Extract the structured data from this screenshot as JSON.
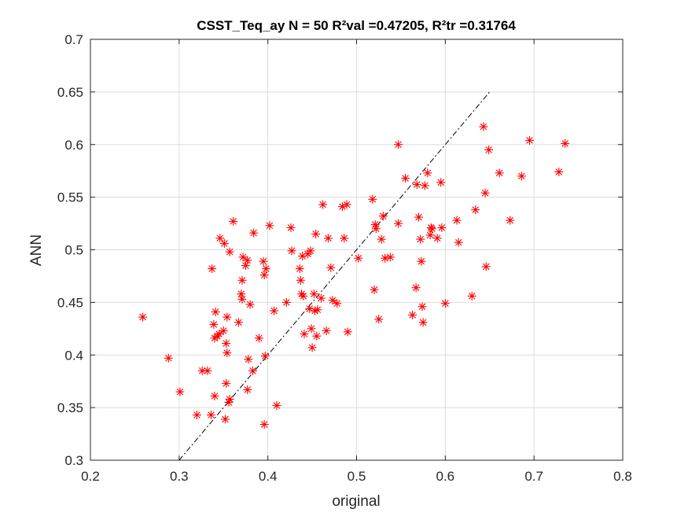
{
  "chart_data": {
    "type": "scatter",
    "title": "CSST_Teq_ay  N = 50 R²val =0.47205, R²tr =0.31764",
    "xlabel": "original",
    "ylabel": "ANN",
    "xlim": [
      0.2,
      0.8
    ],
    "ylim": [
      0.3,
      0.7
    ],
    "xticks": [
      0.2,
      0.3,
      0.4,
      0.5,
      0.6,
      0.7,
      0.8
    ],
    "yticks": [
      0.3,
      0.35,
      0.4,
      0.45,
      0.5,
      0.55,
      0.6,
      0.65,
      0.7
    ],
    "xtick_labels": [
      "0.2",
      "0.3",
      "0.4",
      "0.5",
      "0.6",
      "0.7",
      "0.8"
    ],
    "ytick_labels": [
      "0.3",
      "0.35",
      "0.4",
      "0.45",
      "0.5",
      "0.55",
      "0.6",
      "0.65",
      "0.7"
    ],
    "grid": true,
    "marker": "asterisk",
    "marker_color": "#ff0000",
    "reference_line": {
      "x": [
        0.3,
        0.65
      ],
      "y": [
        0.3,
        0.65
      ],
      "style": "dash-dot",
      "color": "#000000"
    },
    "series": [
      {
        "points": [
          [
            0.259,
            0.436
          ],
          [
            0.288,
            0.397
          ],
          [
            0.301,
            0.365
          ],
          [
            0.32,
            0.343
          ],
          [
            0.326,
            0.385
          ],
          [
            0.332,
            0.385
          ],
          [
            0.336,
            0.343
          ],
          [
            0.337,
            0.482
          ],
          [
            0.339,
            0.429
          ],
          [
            0.34,
            0.361
          ],
          [
            0.34,
            0.416
          ],
          [
            0.341,
            0.441
          ],
          [
            0.343,
            0.418
          ],
          [
            0.345,
            0.42
          ],
          [
            0.346,
            0.511
          ],
          [
            0.35,
            0.423
          ],
          [
            0.351,
            0.506
          ],
          [
            0.352,
            0.339
          ],
          [
            0.353,
            0.373
          ],
          [
            0.353,
            0.411
          ],
          [
            0.354,
            0.402
          ],
          [
            0.354,
            0.436
          ],
          [
            0.356,
            0.355
          ],
          [
            0.357,
            0.358
          ],
          [
            0.357,
            0.498
          ],
          [
            0.361,
            0.527
          ],
          [
            0.367,
            0.431
          ],
          [
            0.37,
            0.458
          ],
          [
            0.371,
            0.453
          ],
          [
            0.371,
            0.471
          ],
          [
            0.372,
            0.493
          ],
          [
            0.375,
            0.485
          ],
          [
            0.377,
            0.367
          ],
          [
            0.377,
            0.49
          ],
          [
            0.378,
            0.396
          ],
          [
            0.38,
            0.448
          ],
          [
            0.383,
            0.385
          ],
          [
            0.384,
            0.516
          ],
          [
            0.39,
            0.416
          ],
          [
            0.395,
            0.489
          ],
          [
            0.396,
            0.334
          ],
          [
            0.396,
            0.476
          ],
          [
            0.397,
            0.399
          ],
          [
            0.398,
            0.482
          ],
          [
            0.402,
            0.523
          ],
          [
            0.407,
            0.442
          ],
          [
            0.41,
            0.352
          ],
          [
            0.421,
            0.45
          ],
          [
            0.426,
            0.521
          ],
          [
            0.427,
            0.499
          ],
          [
            0.436,
            0.482
          ],
          [
            0.437,
            0.471
          ],
          [
            0.438,
            0.458
          ],
          [
            0.439,
            0.494
          ],
          [
            0.44,
            0.456
          ],
          [
            0.441,
            0.42
          ],
          [
            0.445,
            0.496
          ],
          [
            0.447,
            0.444
          ],
          [
            0.448,
            0.499
          ],
          [
            0.449,
            0.425
          ],
          [
            0.45,
            0.407
          ],
          [
            0.452,
            0.458
          ],
          [
            0.453,
            0.442
          ],
          [
            0.454,
            0.515
          ],
          [
            0.455,
            0.418
          ],
          [
            0.456,
            0.443
          ],
          [
            0.46,
            0.454
          ],
          [
            0.462,
            0.543
          ],
          [
            0.466,
            0.423
          ],
          [
            0.468,
            0.511
          ],
          [
            0.471,
            0.483
          ],
          [
            0.473,
            0.452
          ],
          [
            0.478,
            0.449
          ],
          [
            0.484,
            0.541
          ],
          [
            0.486,
            0.511
          ],
          [
            0.489,
            0.543
          ],
          [
            0.49,
            0.422
          ],
          [
            0.502,
            0.492
          ],
          [
            0.518,
            0.548
          ],
          [
            0.52,
            0.462
          ],
          [
            0.521,
            0.524
          ],
          [
            0.522,
            0.52
          ],
          [
            0.525,
            0.434
          ],
          [
            0.528,
            0.51
          ],
          [
            0.53,
            0.532
          ],
          [
            0.532,
            0.492
          ],
          [
            0.538,
            0.493
          ],
          [
            0.547,
            0.525
          ],
          [
            0.547,
            0.6
          ],
          [
            0.555,
            0.568
          ],
          [
            0.563,
            0.438
          ],
          [
            0.567,
            0.464
          ],
          [
            0.568,
            0.562
          ],
          [
            0.57,
            0.531
          ],
          [
            0.572,
            0.51
          ],
          [
            0.573,
            0.489
          ],
          [
            0.574,
            0.446
          ],
          [
            0.575,
            0.431
          ],
          [
            0.577,
            0.561
          ],
          [
            0.58,
            0.573
          ],
          [
            0.583,
            0.514
          ],
          [
            0.584,
            0.521
          ],
          [
            0.585,
            0.52
          ],
          [
            0.591,
            0.511
          ],
          [
            0.595,
            0.564
          ],
          [
            0.596,
            0.521
          ],
          [
            0.6,
            0.449
          ],
          [
            0.613,
            0.528
          ],
          [
            0.615,
            0.507
          ],
          [
            0.63,
            0.456
          ],
          [
            0.634,
            0.538
          ],
          [
            0.643,
            0.617
          ],
          [
            0.645,
            0.554
          ],
          [
            0.646,
            0.484
          ],
          [
            0.649,
            0.595
          ],
          [
            0.661,
            0.573
          ],
          [
            0.673,
            0.528
          ],
          [
            0.686,
            0.57
          ],
          [
            0.695,
            0.604
          ],
          [
            0.728,
            0.574
          ],
          [
            0.735,
            0.601
          ]
        ]
      }
    ]
  }
}
